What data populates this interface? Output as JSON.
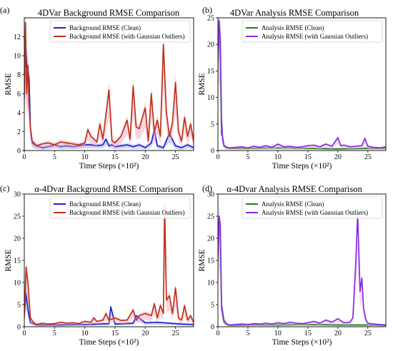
{
  "chart_data": [
    {
      "panel_label": "(a)",
      "type": "line",
      "title": "4DVar Background RMSE Comparison",
      "xlabel": "Time Steps (×10²)",
      "ylabel": "RMSE",
      "xlim": [
        0,
        28
      ],
      "ylim": [
        0,
        14
      ],
      "xticks": [
        0,
        5,
        10,
        15,
        20,
        25
      ],
      "yticks": [
        0,
        2,
        4,
        6,
        8,
        10,
        12
      ],
      "grid": false,
      "legend": "top-right",
      "series": [
        {
          "name": "Background RMSE (Clean)",
          "color": "#1f1fd0",
          "shade": "#9fa8f0",
          "x": [
            0,
            0.2,
            0.4,
            0.6,
            0.8,
            1.0,
            1.3,
            2,
            3,
            4,
            5,
            6,
            7,
            8,
            9,
            10,
            11,
            12,
            13,
            13.5,
            14,
            14.5,
            15,
            16,
            17,
            18,
            19,
            20,
            21,
            21.5,
            22,
            23,
            24,
            25,
            26,
            27,
            28
          ],
          "values": [
            5.5,
            11.5,
            9,
            8.5,
            7.5,
            2.5,
            0.8,
            0.5,
            0.3,
            0.4,
            0.6,
            0.4,
            0.5,
            0.4,
            0.5,
            0.6,
            0.6,
            0.5,
            0.6,
            1.2,
            0.5,
            0.6,
            0.4,
            0.5,
            0.6,
            0.4,
            0.6,
            0.3,
            0.8,
            2.2,
            0.5,
            0.3,
            1.8,
            0.5,
            0.3,
            0.6,
            0.3
          ]
        },
        {
          "name": "Background RMSE (with Gaussian Outliers)",
          "color": "#c0301a",
          "shade": "#f0a6b8",
          "x": [
            0,
            0.2,
            0.4,
            0.6,
            0.8,
            1.0,
            1.3,
            2,
            3,
            4,
            5,
            6,
            7,
            8,
            9,
            10,
            10.5,
            11,
            12,
            12.5,
            13,
            14,
            14.5,
            15,
            16,
            17,
            17.5,
            18,
            18.5,
            19,
            20,
            20.5,
            21,
            21.5,
            22,
            22.5,
            23,
            23.5,
            24,
            24.5,
            25,
            25.5,
            26,
            26.5,
            27,
            27.5,
            28
          ],
          "values": [
            6,
            13.5,
            6,
            9,
            5,
            2.5,
            1,
            0.5,
            0.7,
            0.8,
            0.6,
            0.9,
            0.8,
            0.7,
            0.6,
            0.8,
            2.2,
            1.5,
            0.9,
            2.8,
            1.2,
            6.4,
            1,
            0.8,
            1.5,
            3.2,
            1.2,
            6.8,
            2.5,
            2.3,
            4.5,
            1,
            6,
            2,
            3.2,
            1.5,
            11.2,
            4,
            1.5,
            3,
            7.2,
            2,
            1,
            3.5,
            1.5,
            2.8,
            1
          ]
        }
      ]
    },
    {
      "panel_label": "(b)",
      "type": "line",
      "title": "4DVar Analysis RMSE Comparison",
      "xlabel": "Time Steps (×10²)",
      "ylabel": "RMSE",
      "xlim": [
        0,
        28
      ],
      "ylim": [
        0,
        25
      ],
      "xticks": [
        0,
        5,
        10,
        15,
        20,
        25
      ],
      "yticks": [
        0,
        5,
        10,
        15,
        20,
        25
      ],
      "grid": false,
      "legend": "top-right",
      "series": [
        {
          "name": "Analysis RMSE (Clean)",
          "color": "#1e7d1e",
          "shade": "#a0d6a0",
          "x": [
            0,
            0.2,
            0.4,
            0.6,
            0.8,
            1.0,
            1.5,
            2,
            5,
            10,
            15,
            20,
            25,
            28
          ],
          "values": [
            16,
            23.5,
            17,
            3,
            2.5,
            0.8,
            0.5,
            0.4,
            0.4,
            0.5,
            0.4,
            0.3,
            0.4,
            0.4
          ]
        },
        {
          "name": "Analysis RMSE (with Gaussian Outliers)",
          "color": "#8a2be2",
          "shade": "#e8b8ee",
          "x": [
            0,
            0.2,
            0.4,
            0.6,
            0.8,
            1.0,
            1.5,
            2,
            3,
            4,
            5,
            6,
            7,
            8,
            9,
            10,
            11,
            12,
            13,
            14,
            15,
            16,
            17,
            18,
            19,
            20,
            20.5,
            21,
            22,
            23,
            24,
            24.5,
            25,
            26,
            27,
            28
          ],
          "values": [
            18,
            24.5,
            21,
            6,
            2,
            1,
            0.6,
            0.5,
            0.6,
            0.7,
            0.5,
            0.8,
            0.6,
            0.9,
            0.6,
            1.2,
            0.7,
            0.8,
            0.6,
            0.7,
            0.9,
            1,
            0.7,
            1.2,
            0.8,
            2.4,
            0.9,
            1,
            0.7,
            0.8,
            0.9,
            2.3,
            0.8,
            0.6,
            0.5,
            0.7
          ]
        }
      ]
    },
    {
      "panel_label": "(c)",
      "type": "line",
      "title": "α-4Dvar Background RMSE Comparison",
      "xlabel": "Time Steps (×10²)",
      "ylabel": "RMSE",
      "xlim": [
        0,
        28
      ],
      "ylim": [
        0,
        30
      ],
      "xticks": [
        0,
        5,
        10,
        15,
        20,
        25
      ],
      "yticks": [
        0,
        5,
        10,
        15,
        20,
        25,
        30
      ],
      "grid": false,
      "legend": "top-right",
      "series": [
        {
          "name": "Background RMSE (Clean)",
          "color": "#1f1fd0",
          "shade": "#9fa8f0",
          "x": [
            0,
            0.3,
            0.6,
            1,
            2,
            5,
            10,
            12,
            14,
            14.3,
            15,
            18,
            18.5,
            20,
            22,
            24,
            26,
            28
          ],
          "values": [
            3,
            7.5,
            4,
            1,
            0.4,
            0.4,
            0.5,
            0.6,
            0.7,
            4.5,
            0.6,
            0.8,
            2.5,
            0.9,
            1,
            0.8,
            0.6,
            0.5
          ]
        },
        {
          "name": "Background RMSE (with Gaussian Outliers)",
          "color": "#c0301a",
          "shade": "#f0a6b8",
          "x": [
            0,
            0.3,
            0.6,
            1,
            1.5,
            2,
            3,
            4,
            5,
            6,
            7,
            8,
            9,
            10,
            11,
            11.5,
            12,
            13,
            13.5,
            14,
            15,
            16,
            17,
            18,
            18.5,
            19,
            20,
            21,
            21.5,
            22,
            22.5,
            23,
            23.2,
            23.5,
            24,
            24.5,
            25,
            25.5,
            26,
            26.5,
            27,
            27.5,
            28
          ],
          "values": [
            2,
            13.5,
            10,
            2,
            1,
            0.5,
            0.8,
            0.6,
            0.7,
            1,
            0.8,
            0.9,
            0.7,
            1.2,
            1,
            2,
            1.2,
            1.5,
            3,
            1.5,
            2,
            1.4,
            1.5,
            3.8,
            1.5,
            2.5,
            3,
            2.5,
            5.2,
            2,
            4.8,
            3,
            28,
            6,
            7,
            3,
            8.8,
            2,
            1.5,
            4.8,
            1.5,
            2.5,
            1
          ]
        }
      ]
    },
    {
      "panel_label": "(d)",
      "type": "line",
      "title": "α-4Dvar Analysis RMSE Comparison",
      "xlabel": "Time Steps (×10²)",
      "ylabel": "RMSE",
      "xlim": [
        0,
        28
      ],
      "ylim": [
        0,
        30
      ],
      "xticks": [
        0,
        5,
        10,
        15,
        20,
        25
      ],
      "yticks": [
        0,
        5,
        10,
        15,
        20,
        25,
        30
      ],
      "grid": false,
      "legend": "top-right",
      "series": [
        {
          "name": "Analysis RMSE (Clean)",
          "color": "#1e7d1e",
          "shade": "#a0d6a0",
          "x": [
            0,
            0.2,
            0.4,
            0.6,
            1,
            1.5,
            2,
            5,
            10,
            15,
            20,
            25,
            28
          ],
          "values": [
            15,
            24,
            20,
            4,
            1,
            0.5,
            0.3,
            0.4,
            0.4,
            0.5,
            0.4,
            0.4,
            0.3
          ]
        },
        {
          "name": "Analysis RMSE (with Gaussian Outliers)",
          "color": "#8a2be2",
          "shade": "#e8b8ee",
          "x": [
            0,
            0.2,
            0.4,
            0.6,
            1,
            1.5,
            2,
            3,
            4,
            5,
            6,
            7,
            8,
            9,
            10,
            11,
            12,
            13,
            14,
            15,
            16,
            17,
            18,
            19,
            20,
            21,
            22,
            22.5,
            23,
            23.3,
            23.7,
            24,
            24.3,
            24.7,
            25,
            26,
            27,
            28
          ],
          "values": [
            16,
            25,
            23,
            5,
            1.5,
            0.6,
            0.4,
            0.5,
            0.6,
            0.5,
            0.7,
            0.6,
            0.8,
            0.6,
            0.9,
            0.7,
            1,
            0.8,
            0.7,
            0.9,
            1.2,
            0.8,
            1.5,
            1,
            1.8,
            0.9,
            1,
            2,
            15,
            25.5,
            8,
            11,
            4,
            1.5,
            0.8,
            0.6,
            0.5,
            0.4
          ]
        }
      ]
    }
  ]
}
